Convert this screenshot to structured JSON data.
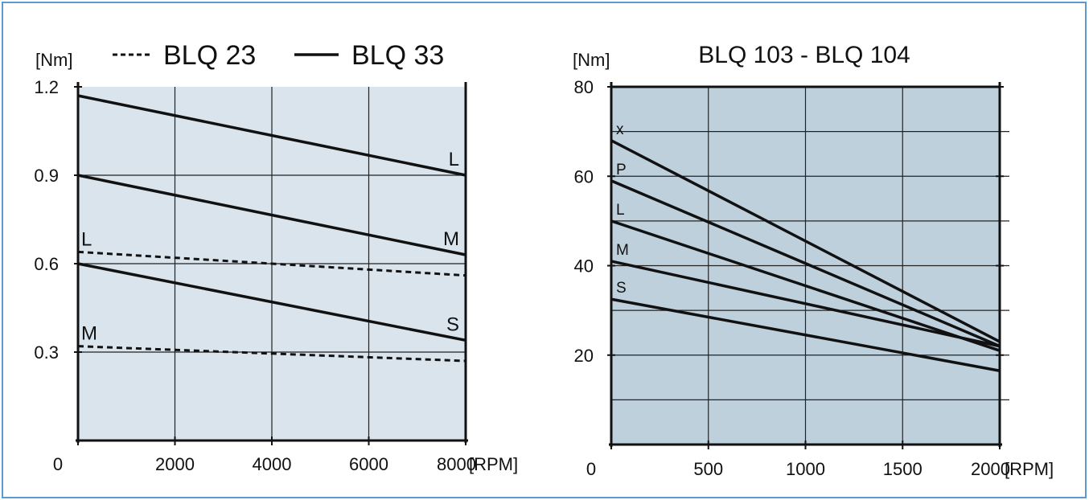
{
  "colors": {
    "frame": "#5a9ad0",
    "left_plot_bg": "#d9e4ec",
    "right_plot_bg": "#bfd0dd",
    "line": "#111111"
  },
  "chart_data": [
    {
      "type": "line",
      "title": "",
      "legend": [
        {
          "label": "BLQ 23",
          "style": "dotted"
        },
        {
          "label": "BLQ 33",
          "style": "solid"
        }
      ],
      "xlabel": "[RPM]",
      "ylabel": "[Nm]",
      "xlim": [
        0,
        8000
      ],
      "ylim": [
        0,
        1.2
      ],
      "xticks": [
        0,
        2000,
        4000,
        6000,
        8000
      ],
      "xtick_labels": [
        "0",
        "2000",
        "4000",
        "6000",
        "8000"
      ],
      "yticks": [
        0.3,
        0.6,
        0.9,
        1.2
      ],
      "ytick_labels": [
        "0.3",
        "0.6",
        "0.9",
        "1.2"
      ],
      "grid": true,
      "series": [
        {
          "name": "L",
          "group": "BLQ 33",
          "style": "solid",
          "x": [
            0,
            8000
          ],
          "y": [
            1.17,
            0.9
          ],
          "label_at": "end"
        },
        {
          "name": "M",
          "group": "BLQ 33",
          "style": "solid",
          "x": [
            0,
            8000
          ],
          "y": [
            0.9,
            0.63
          ],
          "label_at": "end"
        },
        {
          "name": "S",
          "group": "BLQ 33",
          "style": "solid",
          "x": [
            0,
            8000
          ],
          "y": [
            0.6,
            0.34
          ],
          "label_at": "end"
        },
        {
          "name": "L",
          "group": "BLQ 23",
          "style": "dotted",
          "x": [
            0,
            8000
          ],
          "y": [
            0.64,
            0.56
          ],
          "label_at": "start"
        },
        {
          "name": "M",
          "group": "BLQ 23",
          "style": "dotted",
          "x": [
            0,
            8000
          ],
          "y": [
            0.32,
            0.27
          ],
          "label_at": "start"
        }
      ]
    },
    {
      "type": "line",
      "title": "BLQ  103 - BLQ 104",
      "xlabel": "[RPM]",
      "ylabel": "[Nm]",
      "xlim": [
        0,
        2000
      ],
      "ylim": [
        0,
        80
      ],
      "xticks": [
        0,
        500,
        1000,
        1500,
        2000
      ],
      "xtick_labels": [
        "0",
        "500",
        "1000",
        "1500",
        "2000"
      ],
      "yticks": [
        20,
        40,
        60,
        80
      ],
      "ytick_labels": [
        "20",
        "40",
        "60",
        "80"
      ],
      "grid": true,
      "series": [
        {
          "name": "x",
          "style": "solid",
          "x": [
            0,
            2000
          ],
          "y": [
            68,
            23
          ],
          "label_at": "start"
        },
        {
          "name": "P",
          "style": "solid",
          "x": [
            0,
            2000
          ],
          "y": [
            59,
            22
          ],
          "label_at": "start"
        },
        {
          "name": "L",
          "style": "solid",
          "x": [
            0,
            2000
          ],
          "y": [
            50,
            21
          ],
          "label_at": "start"
        },
        {
          "name": "M",
          "style": "solid",
          "x": [
            0,
            2000
          ],
          "y": [
            41,
            22
          ],
          "label_at": "start"
        },
        {
          "name": "S",
          "style": "solid",
          "x": [
            0,
            2000
          ],
          "y": [
            32.5,
            16.5
          ],
          "label_at": "start"
        }
      ]
    }
  ]
}
